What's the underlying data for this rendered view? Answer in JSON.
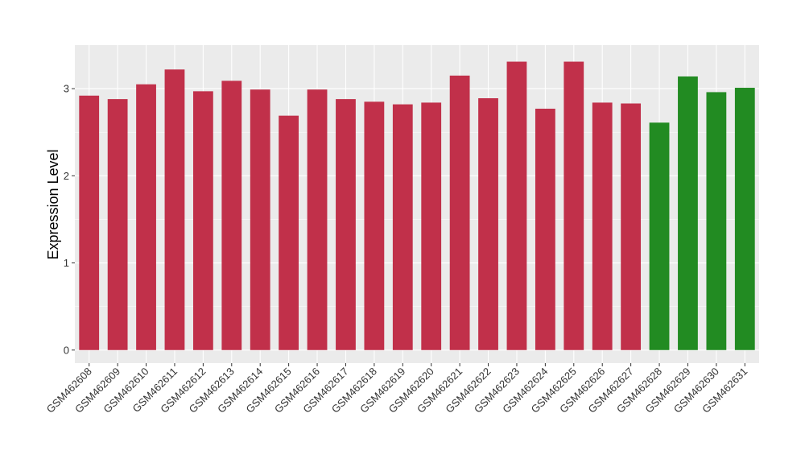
{
  "chart_data": {
    "type": "bar",
    "title": "",
    "xlabel": "",
    "ylabel": "Expression Level",
    "ylim": [
      -0.15,
      3.5
    ],
    "yticks": [
      0,
      1,
      2,
      3
    ],
    "grid": true,
    "categories": [
      "GSM462608",
      "GSM462609",
      "GSM462610",
      "GSM462611",
      "GSM462612",
      "GSM462613",
      "GSM462614",
      "GSM462615",
      "GSM462616",
      "GSM462617",
      "GSM462618",
      "GSM462619",
      "GSM462620",
      "GSM462621",
      "GSM462622",
      "GSM462623",
      "GSM462624",
      "GSM462625",
      "GSM462626",
      "GSM462627",
      "GSM462628",
      "GSM462629",
      "GSM462630",
      "GSM462631"
    ],
    "values": [
      2.92,
      2.88,
      3.05,
      3.22,
      2.97,
      3.09,
      2.99,
      2.69,
      2.99,
      2.88,
      2.85,
      2.82,
      2.84,
      3.15,
      2.89,
      3.31,
      2.77,
      3.31,
      2.84,
      2.83,
      2.61,
      3.14,
      2.96,
      3.01
    ],
    "bar_colors": [
      "#c1304a",
      "#c1304a",
      "#c1304a",
      "#c1304a",
      "#c1304a",
      "#c1304a",
      "#c1304a",
      "#c1304a",
      "#c1304a",
      "#c1304a",
      "#c1304a",
      "#c1304a",
      "#c1304a",
      "#c1304a",
      "#c1304a",
      "#c1304a",
      "#c1304a",
      "#c1304a",
      "#c1304a",
      "#c1304a",
      "#228b22",
      "#228b22",
      "#228b22",
      "#228b22"
    ],
    "panel_background": "#ebebeb",
    "gridline_color": "#ffffff"
  }
}
